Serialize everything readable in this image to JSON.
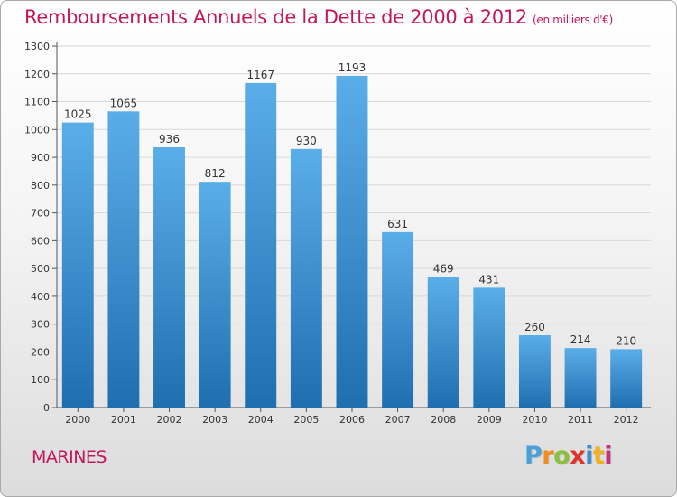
{
  "title": "Remboursements Annuels de la Dette de 2000 à 2012",
  "subtitle": "(en milliers d'€)",
  "town": "MARINES",
  "logo": {
    "text": "Proxiti",
    "colors": [
      "#4a9fd8",
      "#f28c1b",
      "#8cbf3f",
      "#e0312b",
      "#3a8fd0",
      "#f3b21a",
      "#c5317c"
    ]
  },
  "colors": {
    "accent": "#c2185b",
    "bar_top": "#5aaee8",
    "bar_bottom": "#1f6fb0"
  },
  "chart_data": {
    "type": "bar",
    "categories": [
      "2000",
      "2001",
      "2002",
      "2003",
      "2004",
      "2005",
      "2006",
      "2007",
      "2008",
      "2009",
      "2010",
      "2011",
      "2012"
    ],
    "values": [
      1025,
      1065,
      936,
      812,
      1167,
      930,
      1193,
      631,
      469,
      431,
      260,
      214,
      210
    ],
    "title": "Remboursements Annuels de la Dette de 2000 à 2012",
    "subtitle": "(en milliers d'€)",
    "xlabel": "",
    "ylabel": "",
    "ylim": [
      0,
      1300
    ],
    "yticks": [
      0,
      100,
      200,
      300,
      400,
      500,
      600,
      700,
      800,
      900,
      1000,
      1100,
      1200,
      1300
    ],
    "grid": true,
    "legend": "none"
  }
}
